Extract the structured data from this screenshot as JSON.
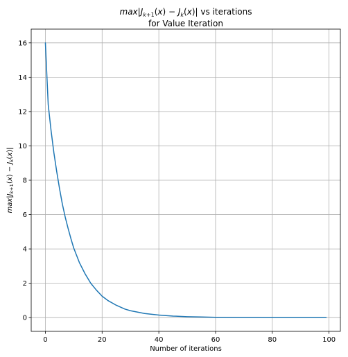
{
  "chart_data": {
    "type": "line",
    "title_line1": "max|J_{k+1}(x) − J_k(x)| vs iterations",
    "title_line2": "for Value Iteration",
    "xlabel": "Number of iterations",
    "ylabel": "max|J_{k+1}(x) − J_k(x)|",
    "xlim": [
      -5,
      104
    ],
    "ylim": [
      -0.8,
      16.8
    ],
    "xticks": [
      0,
      20,
      40,
      60,
      80,
      100
    ],
    "yticks": [
      0,
      2,
      4,
      6,
      8,
      10,
      12,
      14,
      16
    ],
    "grid": true,
    "line_color": "#1f77b4",
    "series": [
      {
        "x": [
          0,
          1,
          2,
          3,
          4,
          5,
          6,
          7,
          8,
          9,
          10,
          12,
          14,
          16,
          18,
          20,
          22,
          25,
          28,
          30,
          35,
          40,
          45,
          50,
          55,
          60,
          65,
          70,
          75,
          80,
          85,
          90,
          95,
          99
        ],
        "values": [
          16.0,
          12.4,
          10.9,
          9.6,
          8.5,
          7.5,
          6.6,
          5.85,
          5.2,
          4.6,
          4.05,
          3.2,
          2.55,
          2.0,
          1.6,
          1.25,
          1.0,
          0.72,
          0.5,
          0.4,
          0.24,
          0.15,
          0.09,
          0.055,
          0.035,
          0.02,
          0.013,
          0.008,
          0.005,
          0.003,
          0.002,
          0.001,
          0.0006,
          0.0004
        ]
      }
    ]
  }
}
